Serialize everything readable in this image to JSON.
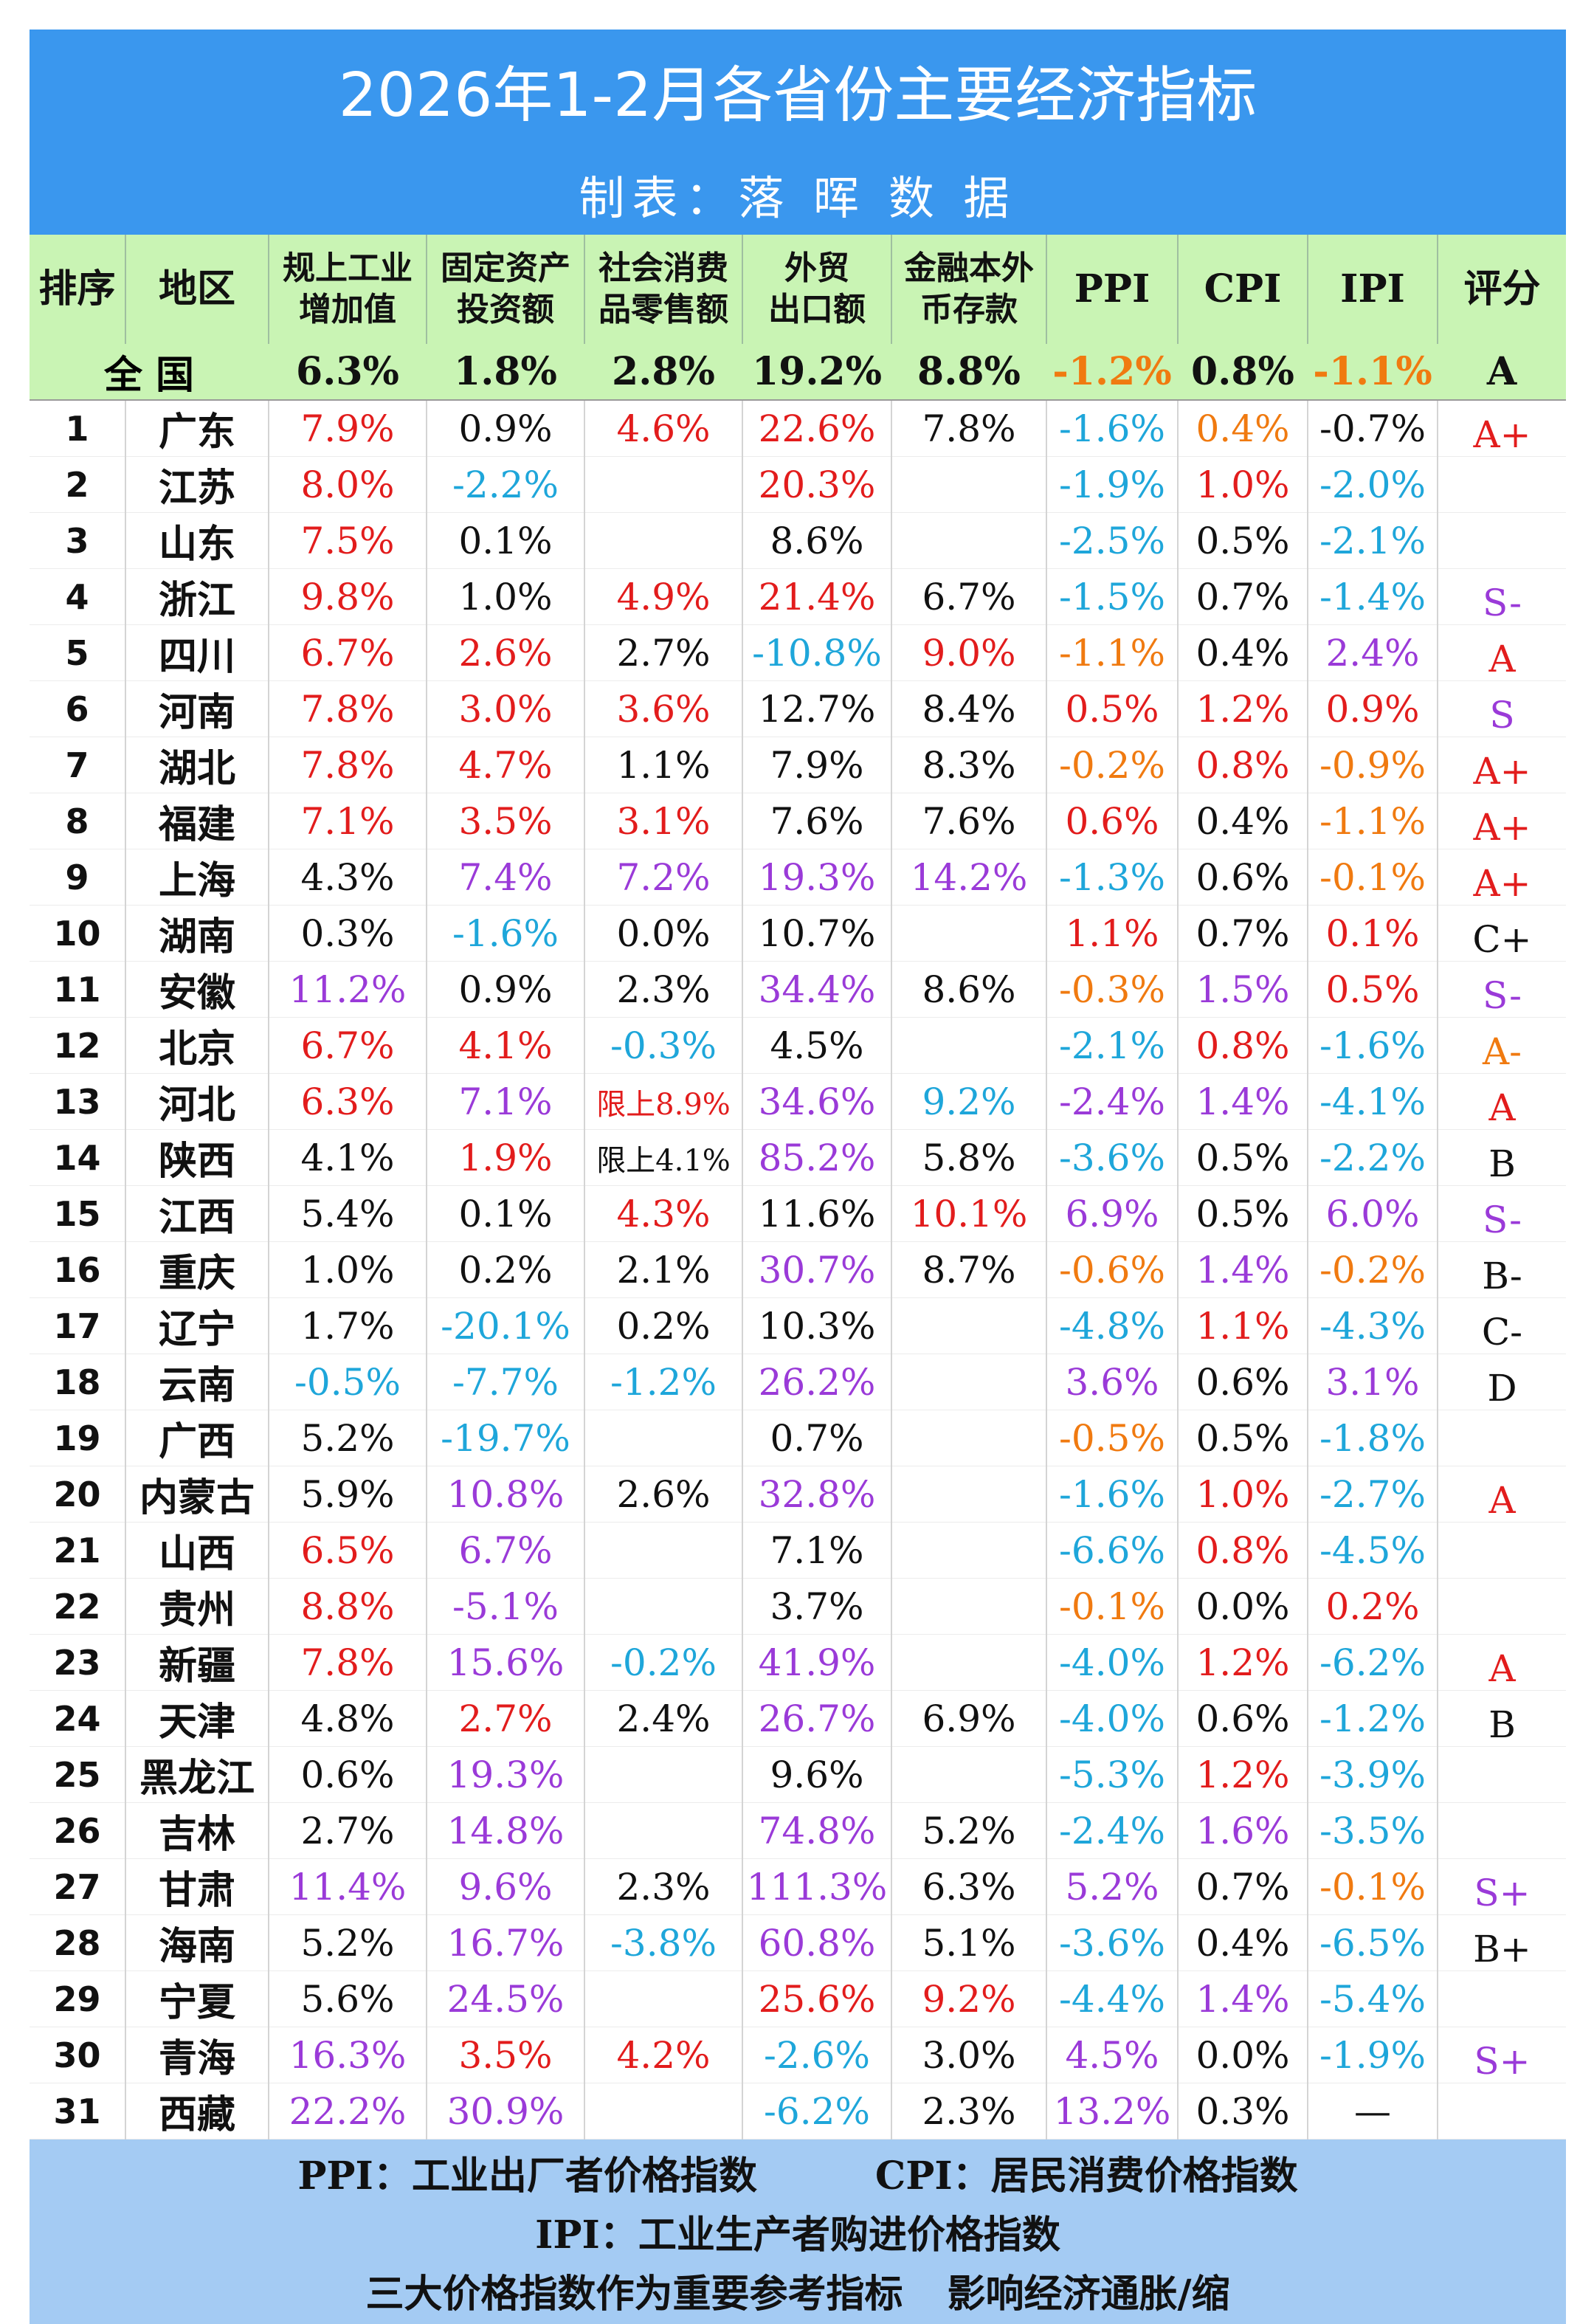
{
  "header": {
    "title": "2026年1-2月各省份主要经济指标",
    "subtitle": "制表：落 晖 数 据"
  },
  "columns": {
    "rank": "排序",
    "region": "地区",
    "industry_line1": "规上工业",
    "industry_line2": "增加值",
    "investment_line1": "固定资产",
    "investment_line2": "投资额",
    "retail_line1": "社会消费",
    "retail_line2": "品零售额",
    "exports_line1": "外贸",
    "exports_line2": "出口额",
    "deposits_line1": "金融本外",
    "deposits_line2": "币存款",
    "ppi": "PPI",
    "cpi": "CPI",
    "ipi": "IPI",
    "rating": "评分"
  },
  "national": {
    "label": "全 国",
    "industry": "6.3%",
    "investment": "1.8%",
    "retail": "2.8%",
    "exports": "19.2%",
    "deposits": "8.8%",
    "ppi": "-1.2%",
    "cpi": "0.8%",
    "ipi": "-1.1%",
    "rating": "A"
  },
  "rows": [
    {
      "rank": "1",
      "region": "广东",
      "industry": "7.9%",
      "investment": "0.9%",
      "retail": "4.6%",
      "exports": "22.6%",
      "deposits": "7.8%",
      "ppi": "-1.6%",
      "cpi": "0.4%",
      "ipi": "-0.7%",
      "rating": "A+"
    },
    {
      "rank": "2",
      "region": "江苏",
      "industry": "8.0%",
      "investment": "-2.2%",
      "retail": "",
      "exports": "20.3%",
      "deposits": "",
      "ppi": "-1.9%",
      "cpi": "1.0%",
      "ipi": "-2.0%",
      "rating": ""
    },
    {
      "rank": "3",
      "region": "山东",
      "industry": "7.5%",
      "investment": "0.1%",
      "retail": "",
      "exports": "8.6%",
      "deposits": "",
      "ppi": "-2.5%",
      "cpi": "0.5%",
      "ipi": "-2.1%",
      "rating": ""
    },
    {
      "rank": "4",
      "region": "浙江",
      "industry": "9.8%",
      "investment": "1.0%",
      "retail": "4.9%",
      "exports": "21.4%",
      "deposits": "6.7%",
      "ppi": "-1.5%",
      "cpi": "0.7%",
      "ipi": "-1.4%",
      "rating": "S-"
    },
    {
      "rank": "5",
      "region": "四川",
      "industry": "6.7%",
      "investment": "2.6%",
      "retail": "2.7%",
      "exports": "-10.8%",
      "deposits": "9.0%",
      "ppi": "-1.1%",
      "cpi": "0.4%",
      "ipi": "2.4%",
      "rating": "A"
    },
    {
      "rank": "6",
      "region": "河南",
      "industry": "7.8%",
      "investment": "3.0%",
      "retail": "3.6%",
      "exports": "12.7%",
      "deposits": "8.4%",
      "ppi": "0.5%",
      "cpi": "1.2%",
      "ipi": "0.9%",
      "rating": "S"
    },
    {
      "rank": "7",
      "region": "湖北",
      "industry": "7.8%",
      "investment": "4.7%",
      "retail": "1.1%",
      "exports": "7.9%",
      "deposits": "8.3%",
      "ppi": "-0.2%",
      "cpi": "0.8%",
      "ipi": "-0.9%",
      "rating": "A+"
    },
    {
      "rank": "8",
      "region": "福建",
      "industry": "7.1%",
      "investment": "3.5%",
      "retail": "3.1%",
      "exports": "7.6%",
      "deposits": "7.6%",
      "ppi": "0.6%",
      "cpi": "0.4%",
      "ipi": "-1.1%",
      "rating": "A+"
    },
    {
      "rank": "9",
      "region": "上海",
      "industry": "4.3%",
      "investment": "7.4%",
      "retail": "7.2%",
      "exports": "19.3%",
      "deposits": "14.2%",
      "ppi": "-1.3%",
      "cpi": "0.6%",
      "ipi": "-0.1%",
      "rating": "A+"
    },
    {
      "rank": "10",
      "region": "湖南",
      "industry": "0.3%",
      "investment": "-1.6%",
      "retail": "0.0%",
      "exports": "10.7%",
      "deposits": "",
      "ppi": "1.1%",
      "cpi": "0.7%",
      "ipi": "0.1%",
      "rating": "C+"
    },
    {
      "rank": "11",
      "region": "安徽",
      "industry": "11.2%",
      "investment": "0.9%",
      "retail": "2.3%",
      "exports": "34.4%",
      "deposits": "8.6%",
      "ppi": "-0.3%",
      "cpi": "1.5%",
      "ipi": "0.5%",
      "rating": "S-"
    },
    {
      "rank": "12",
      "region": "北京",
      "industry": "6.7%",
      "investment": "4.1%",
      "retail": "-0.3%",
      "exports": "4.5%",
      "deposits": "",
      "ppi": "-2.1%",
      "cpi": "0.8%",
      "ipi": "-1.6%",
      "rating": "A-"
    },
    {
      "rank": "13",
      "region": "河北",
      "industry": "6.3%",
      "investment": "7.1%",
      "retail": "限上8.9%",
      "exports": "34.6%",
      "deposits": "9.2%",
      "ppi": "-2.4%",
      "cpi": "1.4%",
      "ipi": "-4.1%",
      "rating": "A"
    },
    {
      "rank": "14",
      "region": "陕西",
      "industry": "4.1%",
      "investment": "1.9%",
      "retail": "限上4.1%",
      "exports": "85.2%",
      "deposits": "5.8%",
      "ppi": "-3.6%",
      "cpi": "0.5%",
      "ipi": "-2.2%",
      "rating": "B"
    },
    {
      "rank": "15",
      "region": "江西",
      "industry": "5.4%",
      "investment": "0.1%",
      "retail": "4.3%",
      "exports": "11.6%",
      "deposits": "10.1%",
      "ppi": "6.9%",
      "cpi": "0.5%",
      "ipi": "6.0%",
      "rating": "S-"
    },
    {
      "rank": "16",
      "region": "重庆",
      "industry": "1.0%",
      "investment": "0.2%",
      "retail": "2.1%",
      "exports": "30.7%",
      "deposits": "8.7%",
      "ppi": "-0.6%",
      "cpi": "1.4%",
      "ipi": "-0.2%",
      "rating": "B-"
    },
    {
      "rank": "17",
      "region": "辽宁",
      "industry": "1.7%",
      "investment": "-20.1%",
      "retail": "0.2%",
      "exports": "10.3%",
      "deposits": "",
      "ppi": "-4.8%",
      "cpi": "1.1%",
      "ipi": "-4.3%",
      "rating": "C-"
    },
    {
      "rank": "18",
      "region": "云南",
      "industry": "-0.5%",
      "investment": "-7.7%",
      "retail": "-1.2%",
      "exports": "26.2%",
      "deposits": "",
      "ppi": "3.6%",
      "cpi": "0.6%",
      "ipi": "3.1%",
      "rating": "D"
    },
    {
      "rank": "19",
      "region": "广西",
      "industry": "5.2%",
      "investment": "-19.7%",
      "retail": "",
      "exports": "0.7%",
      "deposits": "",
      "ppi": "-0.5%",
      "cpi": "0.5%",
      "ipi": "-1.8%",
      "rating": ""
    },
    {
      "rank": "20",
      "region": "内蒙古",
      "industry": "5.9%",
      "investment": "10.8%",
      "retail": "2.6%",
      "exports": "32.8%",
      "deposits": "",
      "ppi": "-1.6%",
      "cpi": "1.0%",
      "ipi": "-2.7%",
      "rating": "A"
    },
    {
      "rank": "21",
      "region": "山西",
      "industry": "6.5%",
      "investment": "6.7%",
      "retail": "",
      "exports": "7.1%",
      "deposits": "",
      "ppi": "-6.6%",
      "cpi": "0.8%",
      "ipi": "-4.5%",
      "rating": ""
    },
    {
      "rank": "22",
      "region": "贵州",
      "industry": "8.8%",
      "investment": "-5.1%",
      "retail": "",
      "exports": "3.7%",
      "deposits": "",
      "ppi": "-0.1%",
      "cpi": "0.0%",
      "ipi": "0.2%",
      "rating": ""
    },
    {
      "rank": "23",
      "region": "新疆",
      "industry": "7.8%",
      "investment": "15.6%",
      "retail": "-0.2%",
      "exports": "41.9%",
      "deposits": "",
      "ppi": "-4.0%",
      "cpi": "1.2%",
      "ipi": "-6.2%",
      "rating": "A"
    },
    {
      "rank": "24",
      "region": "天津",
      "industry": "4.8%",
      "investment": "2.7%",
      "retail": "2.4%",
      "exports": "26.7%",
      "deposits": "6.9%",
      "ppi": "-4.0%",
      "cpi": "0.6%",
      "ipi": "-1.2%",
      "rating": "B"
    },
    {
      "rank": "25",
      "region": "黑龙江",
      "industry": "0.6%",
      "investment": "19.3%",
      "retail": "",
      "exports": "9.6%",
      "deposits": "",
      "ppi": "-5.3%",
      "cpi": "1.2%",
      "ipi": "-3.9%",
      "rating": ""
    },
    {
      "rank": "26",
      "region": "吉林",
      "industry": "2.7%",
      "investment": "14.8%",
      "retail": "",
      "exports": "74.8%",
      "deposits": "5.2%",
      "ppi": "-2.4%",
      "cpi": "1.6%",
      "ipi": "-3.5%",
      "rating": ""
    },
    {
      "rank": "27",
      "region": "甘肃",
      "industry": "11.4%",
      "investment": "9.6%",
      "retail": "2.3%",
      "exports": "111.3%",
      "deposits": "6.3%",
      "ppi": "5.2%",
      "cpi": "0.7%",
      "ipi": "-0.1%",
      "rating": "S+"
    },
    {
      "rank": "28",
      "region": "海南",
      "industry": "5.2%",
      "investment": "16.7%",
      "retail": "-3.8%",
      "exports": "60.8%",
      "deposits": "5.1%",
      "ppi": "-3.6%",
      "cpi": "0.4%",
      "ipi": "-6.5%",
      "rating": "B+"
    },
    {
      "rank": "29",
      "region": "宁夏",
      "industry": "5.6%",
      "investment": "24.5%",
      "retail": "",
      "exports": "25.6%",
      "deposits": "9.2%",
      "ppi": "-4.4%",
      "cpi": "1.4%",
      "ipi": "-5.4%",
      "rating": ""
    },
    {
      "rank": "30",
      "region": "青海",
      "industry": "16.3%",
      "investment": "3.5%",
      "retail": "4.2%",
      "exports": "-2.6%",
      "deposits": "3.0%",
      "ppi": "4.5%",
      "cpi": "0.0%",
      "ipi": "-1.9%",
      "rating": "S+"
    },
    {
      "rank": "31",
      "region": "西藏",
      "industry": "22.2%",
      "investment": "30.9%",
      "retail": "",
      "exports": "-6.2%",
      "deposits": "2.3%",
      "ppi": "13.2%",
      "cpi": "0.3%",
      "ipi": "—",
      "rating": ""
    }
  ],
  "footer": {
    "ppi_def": "PPI：工业出厂者价格指数",
    "cpi_def": "CPI：居民消费价格指数",
    "ipi_def": "IPI：工业生产者购进价格指数",
    "note_a": "三大价格指数作为重要参考指标",
    "note_b": "影响经济通胀/缩"
  }
}
